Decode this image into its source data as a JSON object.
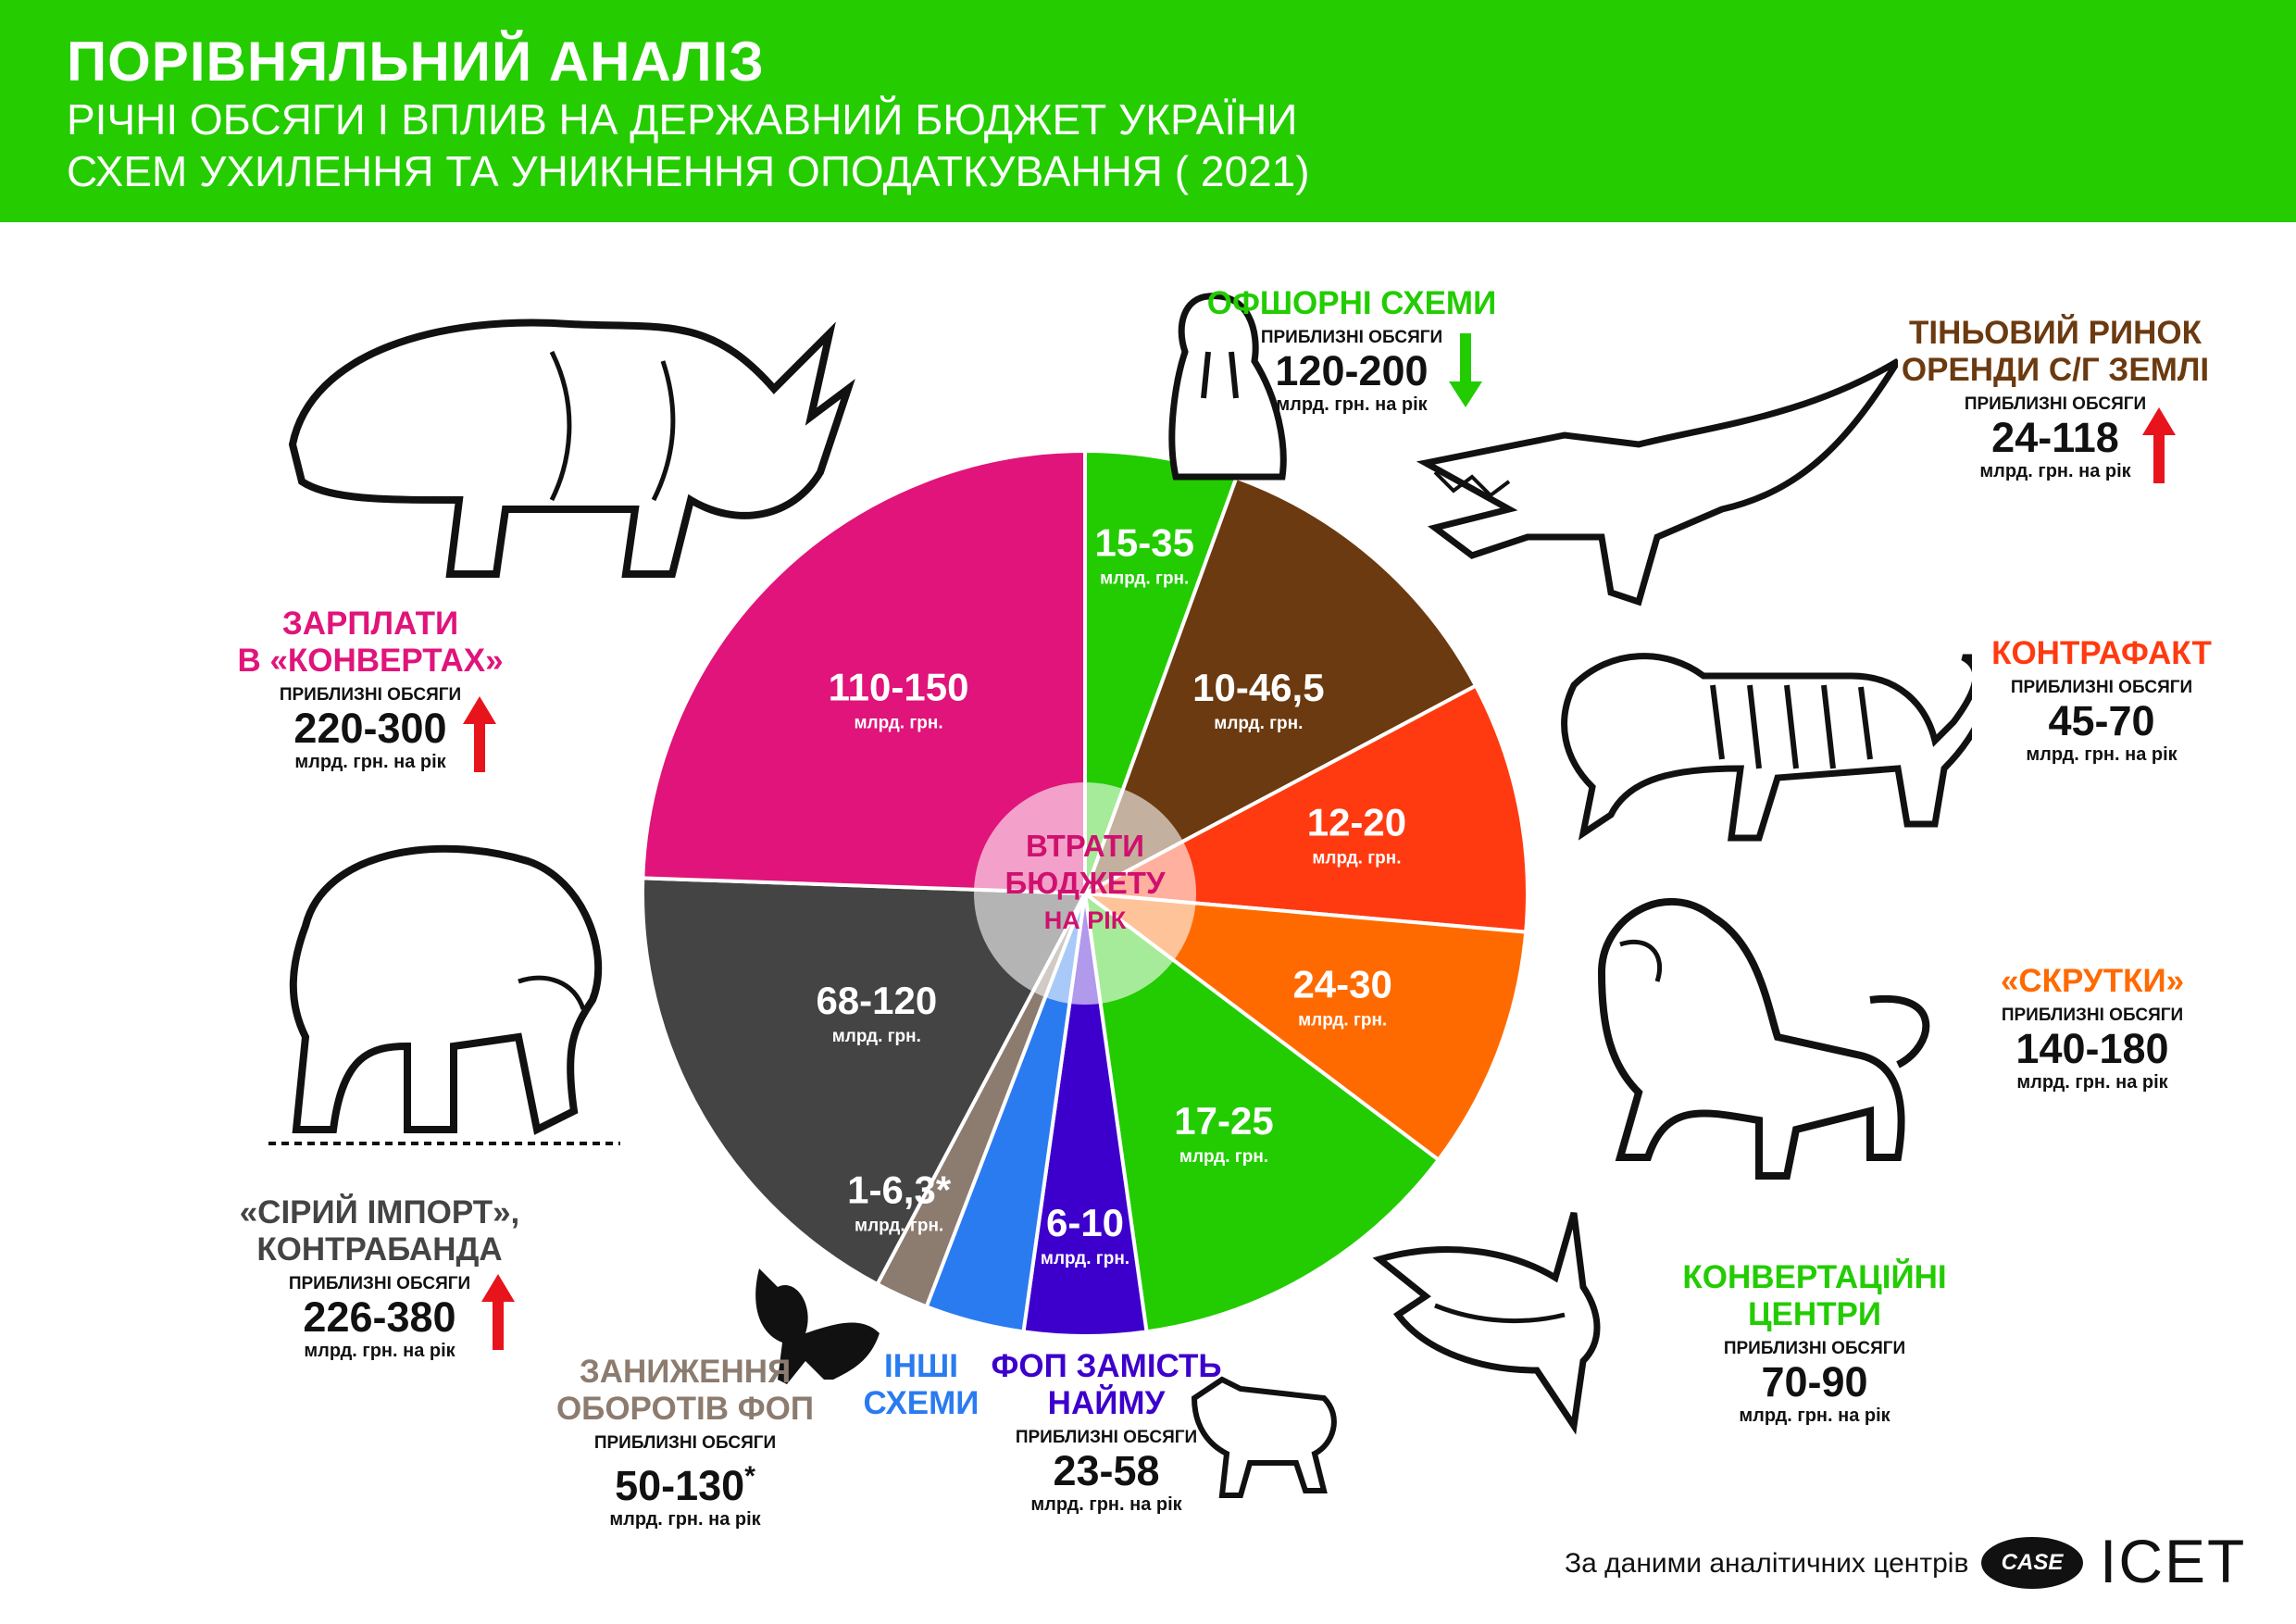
{
  "header": {
    "title": "ПОРІВНЯЛЬНИЙ АНАЛІЗ",
    "subtitle1": "РІЧНІ ОБСЯГИ І ВПЛИВ НА ДЕРЖАВНИЙ БЮДЖЕТ УКРАЇНИ",
    "subtitle2": "СХЕМ УХИЛЕННЯ ТА УНИКНЕННЯ ОПОДАТКУВАННЯ  ( 2021)"
  },
  "colors": {
    "header_green": "#24cc00",
    "magenta": "#e0147a",
    "green": "#22cc00",
    "brown": "#6b3a10",
    "red": "#ff3a10",
    "orange": "#ff6a00",
    "violet": "#3d00cc",
    "blue": "#2a7bf0",
    "taupe": "#8c7b6f",
    "dark_gray": "#444444",
    "arrow_red": "#e8141c",
    "arrow_green": "#22cc00"
  },
  "chart_data": {
    "type": "pie",
    "center_label": "ВТРАТИ\nБЮДЖЕТУ\nНА РІК",
    "slice_unit": "млрд. грн.",
    "slices": [
      {
        "label": "15-35",
        "value_min": 15,
        "value_max": 35,
        "color": "#22cc00",
        "category": "ОФШОРНІ СХЕМИ"
      },
      {
        "label": "10-46,5",
        "value_min": 10,
        "value_max": 46.5,
        "color": "#6b3a10",
        "category": "ТІНЬОВИЙ РИНОК ОРЕНДИ С/Г ЗЕМЛІ"
      },
      {
        "label": "12-20",
        "value_min": 12,
        "value_max": 20,
        "color": "#ff3a10",
        "category": "КОНТРАФАКТ"
      },
      {
        "label": "24-30",
        "value_min": 24,
        "value_max": 30,
        "color": "#ff6a00",
        "category": "«СКРУТКИ»"
      },
      {
        "label": "17-25",
        "value_min": 17,
        "value_max": 25,
        "color": "#22cc00",
        "category": "КОНВЕРТАЦІЙНІ ЦЕНТРИ"
      },
      {
        "label": "6-10",
        "value_min": 6,
        "value_max": 10,
        "color": "#3d00cc",
        "category": "ФОП ЗАМІСТЬ НАЙМУ"
      },
      {
        "label": "",
        "value_min": null,
        "value_max": null,
        "color": "#2a7bf0",
        "category": "ІНШІ СХЕМИ"
      },
      {
        "label": "1-6,3",
        "value_min": 1,
        "value_max": 6.3,
        "color": "#8c7b6f",
        "category": "ЗАНИЖЕННЯ ОБОРОТІВ ФОП",
        "note": "*"
      },
      {
        "label": "68-120",
        "value_min": 68,
        "value_max": 120,
        "color": "#444444",
        "category": "«СІРИЙ ІМПОРТ», КОНТРАБАНДА"
      },
      {
        "label": "110-150",
        "value_min": 110,
        "value_max": 150,
        "color": "#e0147a",
        "category": "ЗАРПЛАТИ В «КОНВЕРТАХ»"
      }
    ]
  },
  "schemes": {
    "offshore": {
      "name": "ОФШОРНІ СХЕМИ",
      "sub": "ПРИБЛИЗНІ ОБСЯГИ",
      "value": "120-200",
      "unit": "млрд. грн. на рік",
      "trend": "down",
      "icon": "walrus"
    },
    "land": {
      "name": "ТІНЬОВИЙ РИНОК\nОРЕНДИ С/Г ЗЕМЛІ",
      "sub": "ПРИБЛИЗНІ ОБСЯГИ",
      "value": "24-118",
      "unit": "млрд. грн. на рік",
      "trend": "up",
      "icon": "crocodile"
    },
    "counterfeit": {
      "name": "КОНТРАФАКТ",
      "sub": "ПРИБЛИЗНІ ОБСЯГИ",
      "value": "45-70",
      "unit": "млрд. грн. на рік",
      "trend": "none",
      "icon": "tiger"
    },
    "twists": {
      "name": "«СКРУТКИ»",
      "sub": "ПРИБЛИЗНІ ОБСЯГИ",
      "value": "140-180",
      "unit": "млрд. грн. на рік",
      "trend": "none",
      "icon": "lion"
    },
    "conversion": {
      "name": "КОНВЕРТАЦІЙНІ\nЦЕНТРИ",
      "sub": "ПРИБЛИЗНІ ОБСЯГИ",
      "value": "70-90",
      "unit": "млрд. грн. на рік",
      "trend": "none",
      "icon": "shark"
    },
    "fop_hire": {
      "name": "ФОП ЗАМІСТЬ\nНАЙМУ",
      "sub": "ПРИБЛИЗНІ ОБСЯГИ",
      "value": "23-58",
      "unit": "млрд. грн. на рік",
      "trend": "none",
      "icon": "wolf"
    },
    "other": {
      "name": "ІНШІ\nСХЕМИ",
      "icon": "cat"
    },
    "fop_turnover": {
      "name": "ЗАНИЖЕННЯ\nОБОРОТІВ ФОП",
      "sub": "ПРИБЛИЗНІ ОБСЯГИ",
      "value": "50-130",
      "note": "*",
      "unit": "млрд. грн. на рік",
      "trend": "none"
    },
    "gray_import": {
      "name": "«СІРИЙ ІМПОРТ»,\nКОНТРАБАНДА",
      "sub": "ПРИБЛИЗНІ ОБСЯГИ",
      "value": "226-380",
      "unit": "млрд. грн. на рік",
      "trend": "up",
      "icon": "bear"
    },
    "salary": {
      "name": "ЗАРПЛАТИ\nВ «КОНВЕРТАХ»",
      "sub": "ПРИБЛИЗНІ ОБСЯГИ",
      "value": "220-300",
      "unit": "млрд. грн. на рік",
      "trend": "up",
      "icon": "rhino"
    }
  },
  "footer": {
    "source": "За даними аналітичних центрів",
    "logo1": "CASE",
    "logo2": "ICET"
  }
}
